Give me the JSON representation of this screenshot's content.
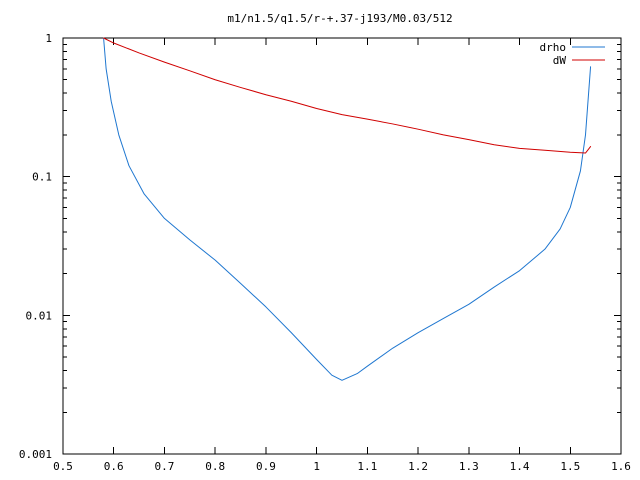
{
  "chart_data": {
    "type": "line",
    "title": "m1/n1.5/q1.5/r-+.37-j193/M0.03/512",
    "xlim": [
      0.5,
      1.6
    ],
    "ylim": [
      0.001,
      1
    ],
    "x_scale": "linear",
    "y_scale": "log",
    "grid": false,
    "legend_position": "top-right",
    "x_ticks": [
      "0.5",
      "0.6",
      "0.7",
      "0.8",
      "0.9",
      "1",
      "1.1",
      "1.2",
      "1.3",
      "1.4",
      "1.5",
      "1.6"
    ],
    "y_ticks": [
      "0.001",
      "0.01",
      "0.1",
      "1"
    ],
    "series": [
      {
        "name": "drho",
        "color": "#1f77d0",
        "points": [
          {
            "x": 0.58,
            "y": 1.0
          },
          {
            "x": 0.585,
            "y": 0.6
          },
          {
            "x": 0.595,
            "y": 0.35
          },
          {
            "x": 0.61,
            "y": 0.2
          },
          {
            "x": 0.63,
            "y": 0.12
          },
          {
            "x": 0.66,
            "y": 0.075
          },
          {
            "x": 0.7,
            "y": 0.05
          },
          {
            "x": 0.75,
            "y": 0.035
          },
          {
            "x": 0.8,
            "y": 0.025
          },
          {
            "x": 0.85,
            "y": 0.017
          },
          {
            "x": 0.9,
            "y": 0.0115
          },
          {
            "x": 0.95,
            "y": 0.0075
          },
          {
            "x": 1.0,
            "y": 0.0048
          },
          {
            "x": 1.03,
            "y": 0.0037
          },
          {
            "x": 1.05,
            "y": 0.0034
          },
          {
            "x": 1.08,
            "y": 0.0038
          },
          {
            "x": 1.1,
            "y": 0.0043
          },
          {
            "x": 1.15,
            "y": 0.0058
          },
          {
            "x": 1.2,
            "y": 0.0075
          },
          {
            "x": 1.25,
            "y": 0.0095
          },
          {
            "x": 1.3,
            "y": 0.012
          },
          {
            "x": 1.35,
            "y": 0.016
          },
          {
            "x": 1.4,
            "y": 0.021
          },
          {
            "x": 1.45,
            "y": 0.03
          },
          {
            "x": 1.48,
            "y": 0.042
          },
          {
            "x": 1.5,
            "y": 0.06
          },
          {
            "x": 1.52,
            "y": 0.11
          },
          {
            "x": 1.53,
            "y": 0.2
          },
          {
            "x": 1.54,
            "y": 0.62
          }
        ]
      },
      {
        "name": "dW",
        "color": "#d00000",
        "points": [
          {
            "x": 0.58,
            "y": 1.0
          },
          {
            "x": 0.6,
            "y": 0.92
          },
          {
            "x": 0.65,
            "y": 0.78
          },
          {
            "x": 0.7,
            "y": 0.67
          },
          {
            "x": 0.75,
            "y": 0.58
          },
          {
            "x": 0.8,
            "y": 0.5
          },
          {
            "x": 0.85,
            "y": 0.44
          },
          {
            "x": 0.9,
            "y": 0.39
          },
          {
            "x": 0.95,
            "y": 0.35
          },
          {
            "x": 1.0,
            "y": 0.31
          },
          {
            "x": 1.05,
            "y": 0.28
          },
          {
            "x": 1.1,
            "y": 0.26
          },
          {
            "x": 1.15,
            "y": 0.24
          },
          {
            "x": 1.2,
            "y": 0.22
          },
          {
            "x": 1.25,
            "y": 0.2
          },
          {
            "x": 1.3,
            "y": 0.185
          },
          {
            "x": 1.35,
            "y": 0.17
          },
          {
            "x": 1.4,
            "y": 0.16
          },
          {
            "x": 1.45,
            "y": 0.155
          },
          {
            "x": 1.5,
            "y": 0.15
          },
          {
            "x": 1.53,
            "y": 0.148
          },
          {
            "x": 1.54,
            "y": 0.165
          }
        ]
      }
    ]
  }
}
